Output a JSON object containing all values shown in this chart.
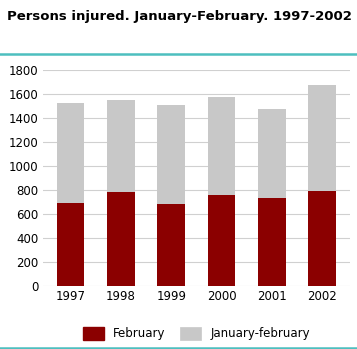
{
  "title": "Persons injured. January-February. 1997-2002",
  "years": [
    "1997",
    "1998",
    "1999",
    "2000",
    "2001",
    "2002"
  ],
  "february_values": [
    690,
    780,
    680,
    760,
    730,
    790
  ],
  "january_february_total": [
    1520,
    1545,
    1505,
    1575,
    1470,
    1675
  ],
  "february_color": "#8b0000",
  "january_february_color": "#c8c8c8",
  "background_color": "#ffffff",
  "title_fontsize": 9.5,
  "ylim": [
    0,
    1800
  ],
  "yticks": [
    0,
    200,
    400,
    600,
    800,
    1000,
    1200,
    1400,
    1600,
    1800
  ],
  "legend_labels": [
    "February",
    "January-february"
  ],
  "grid_color": "#d0d0d0",
  "bar_width": 0.55,
  "title_line_color": "#4dbfbf",
  "bottom_line_color": "#4dbfbf"
}
